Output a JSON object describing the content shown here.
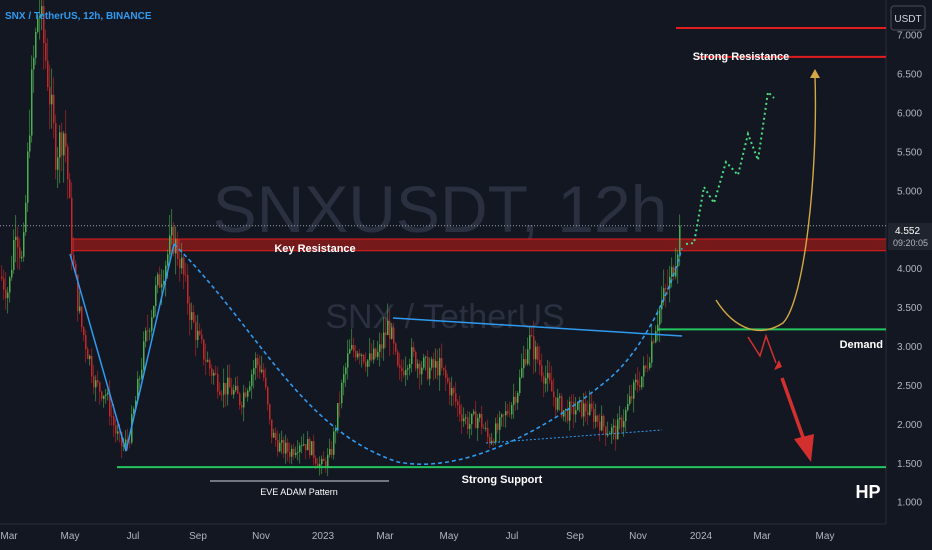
{
  "header": {
    "symbol_line": "SNX / TetherUS, 12h, BINANCE",
    "currency_button": "USDT"
  },
  "watermark": {
    "main": "SNXUSDT, 12h",
    "sub": "SNX / TetherUS"
  },
  "price_tag": {
    "price": "4.552",
    "countdown": "09:20:05"
  },
  "signature": "HP",
  "colors": {
    "background": "#131722",
    "candle_up": "#4caf50",
    "candle_down": "#c62828",
    "support": "#22c55e",
    "resistance": "#e11d1d",
    "trend_blue": "#2f9bf0",
    "projection_green": "#4ade80",
    "projection_yellow": "#d4a843",
    "arrow_red": "#d32f2f"
  },
  "chart_data": {
    "type": "candlestick",
    "title": "SNX / TetherUS, 12h, BINANCE",
    "x_ticks": [
      "Mar",
      "May",
      "Jul",
      "Sep",
      "Nov",
      "2023",
      "Mar",
      "May",
      "Jul",
      "Sep",
      "Nov",
      "2024",
      "Mar",
      "May"
    ],
    "y_ticks": [
      "1.000",
      "1.500",
      "2.000",
      "2.500",
      "3.000",
      "3.500",
      "4.000",
      "4.500",
      "5.000",
      "5.500",
      "6.000",
      "6.500",
      "7.000"
    ],
    "ylim": [
      0.72,
      7.45
    ],
    "grid": false,
    "price_path": [
      [
        0,
        3.9
      ],
      [
        8,
        3.7
      ],
      [
        15,
        4.6
      ],
      [
        22,
        4.0
      ],
      [
        30,
        6.2
      ],
      [
        38,
        7.4
      ],
      [
        46,
        6.6
      ],
      [
        55,
        5.5
      ],
      [
        64,
        5.8
      ],
      [
        72,
        4.1
      ],
      [
        80,
        3.3
      ],
      [
        88,
        2.9
      ],
      [
        95,
        2.5
      ],
      [
        105,
        2.4
      ],
      [
        115,
        1.9
      ],
      [
        122,
        1.7
      ],
      [
        128,
        1.8
      ],
      [
        135,
        2.3
      ],
      [
        145,
        3.1
      ],
      [
        155,
        3.7
      ],
      [
        165,
        4.1
      ],
      [
        172,
        4.4
      ],
      [
        180,
        4.1
      ],
      [
        190,
        3.4
      ],
      [
        200,
        3.0
      ],
      [
        210,
        2.7
      ],
      [
        220,
        2.5
      ],
      [
        230,
        2.45
      ],
      [
        240,
        2.3
      ],
      [
        255,
        2.8
      ],
      [
        262,
        2.7
      ],
      [
        270,
        1.9
      ],
      [
        280,
        1.7
      ],
      [
        290,
        1.65
      ],
      [
        300,
        1.8
      ],
      [
        310,
        1.7
      ],
      [
        320,
        1.45
      ],
      [
        330,
        1.6
      ],
      [
        340,
        2.4
      ],
      [
        348,
        2.9
      ],
      [
        358,
        3.0
      ],
      [
        368,
        2.8
      ],
      [
        378,
        2.9
      ],
      [
        388,
        3.3
      ],
      [
        398,
        2.6
      ],
      [
        408,
        2.9
      ],
      [
        418,
        2.8
      ],
      [
        428,
        2.7
      ],
      [
        438,
        2.75
      ],
      [
        448,
        2.5
      ],
      [
        458,
        2.2
      ],
      [
        468,
        2.0
      ],
      [
        478,
        2.1
      ],
      [
        488,
        1.8
      ],
      [
        498,
        1.95
      ],
      [
        508,
        2.2
      ],
      [
        518,
        2.5
      ],
      [
        528,
        3.1
      ],
      [
        535,
        2.9
      ],
      [
        545,
        2.6
      ],
      [
        555,
        2.3
      ],
      [
        565,
        2.15
      ],
      [
        575,
        2.2
      ],
      [
        585,
        2.2
      ],
      [
        595,
        2.1
      ],
      [
        605,
        1.95
      ],
      [
        615,
        1.9
      ],
      [
        625,
        2.15
      ],
      [
        635,
        2.5
      ],
      [
        645,
        2.7
      ],
      [
        655,
        3.3
      ],
      [
        662,
        3.6
      ],
      [
        670,
        3.85
      ],
      [
        680,
        4.552
      ]
    ],
    "levels": [
      {
        "name": "Strong Resistance",
        "kind": "line",
        "price": 6.72
      },
      {
        "name": "Strong Resistance",
        "kind": "line",
        "price": 7.09
      },
      {
        "name": "Key Resistance",
        "kind": "zone",
        "low": 4.23,
        "high": 4.38
      },
      {
        "name": "Demand",
        "kind": "line",
        "price": 3.22
      },
      {
        "name": "Strong Support",
        "kind": "line",
        "price": 1.45
      },
      {
        "name": "Last price",
        "kind": "dotted",
        "price": 4.55
      }
    ],
    "annotations": [
      "Key Resistance",
      "Strong Resistance",
      "Demand",
      "Strong Support",
      "EVE ADAM Pattern"
    ]
  }
}
